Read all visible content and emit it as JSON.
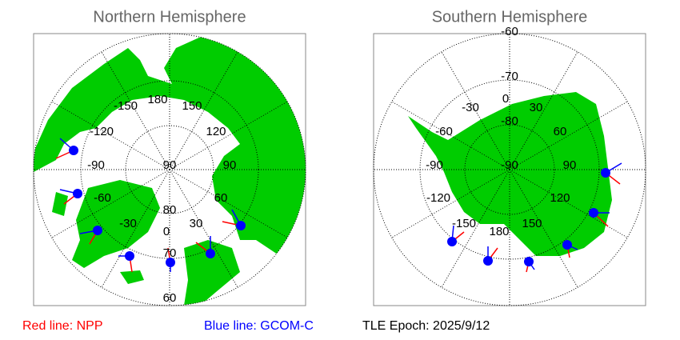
{
  "panels": [
    {
      "title": "Northern Hemisphere",
      "lon_labels": [
        "180",
        "150",
        "120",
        "90",
        "60",
        "30",
        "0",
        "-30",
        "-60",
        "-90",
        "-120",
        "-150"
      ],
      "lat_labels": [
        "90",
        "80",
        "70",
        "60"
      ]
    },
    {
      "title": "Southern Hemisphere",
      "lon_labels": [
        "0",
        "30",
        "60",
        "90",
        "120",
        "150",
        "180",
        "-150",
        "-120",
        "-90",
        "-60",
        "-30"
      ],
      "lat_labels": [
        "-90",
        "-80",
        "-70",
        "-60"
      ]
    }
  ],
  "legend": {
    "npp": "Red line: NPP",
    "gcom": "Blue line: GCOM-C",
    "epoch": "TLE Epoch: 2025/9/12"
  }
}
